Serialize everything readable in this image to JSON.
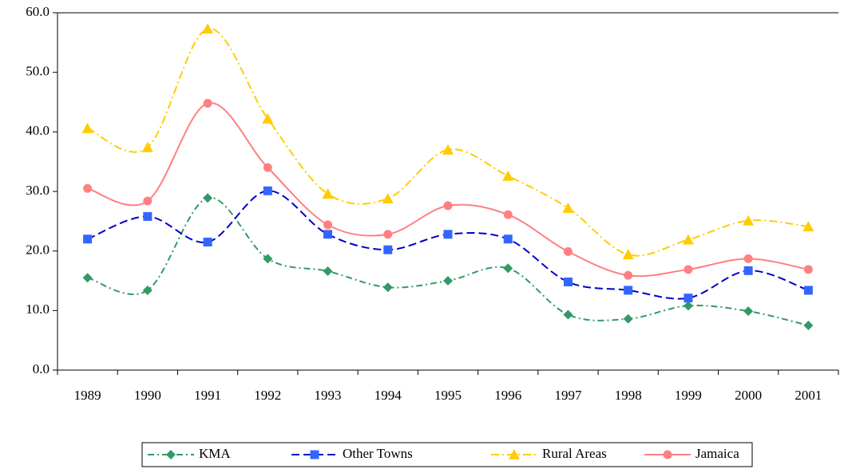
{
  "chart_data": {
    "type": "line",
    "categories": [
      "1989",
      "1990",
      "1991",
      "1992",
      "1993",
      "1994",
      "1995",
      "1996",
      "1997",
      "1998",
      "1999",
      "2000",
      "2001"
    ],
    "series": [
      {
        "name": "KMA",
        "color": "#339966",
        "marker": "diamond",
        "dash": "8 4 2 4",
        "values": [
          15.5,
          13.4,
          28.9,
          18.7,
          16.6,
          13.9,
          15.0,
          17.1,
          9.3,
          8.6,
          10.8,
          9.9,
          7.5
        ]
      },
      {
        "name": "Other Towns",
        "color": "#0000cc",
        "marker_color": "#3366ff",
        "marker": "square",
        "dash": "10 5",
        "values": [
          22.0,
          25.8,
          21.5,
          30.1,
          22.8,
          20.2,
          22.8,
          22.0,
          14.8,
          13.4,
          12.1,
          16.7,
          13.4
        ]
      },
      {
        "name": "Rural Areas",
        "color": "#ffcc00",
        "marker": "triangle",
        "dash": "10 4 2 4",
        "values": [
          40.6,
          37.4,
          57.3,
          42.2,
          29.6,
          28.8,
          37.0,
          32.6,
          27.2,
          19.4,
          21.9,
          25.1,
          24.1
        ]
      },
      {
        "name": "Jamaica",
        "color": "#ff8080",
        "marker": "circle",
        "dash": "none",
        "values": [
          30.5,
          28.4,
          44.8,
          34.0,
          24.4,
          22.8,
          27.6,
          26.1,
          19.9,
          15.9,
          16.9,
          18.7,
          16.9
        ]
      }
    ],
    "ylim": [
      0,
      60
    ],
    "yticks": [
      {
        "value": 0,
        "label": "0.0"
      },
      {
        "value": 10,
        "label": "10.0"
      },
      {
        "value": 20,
        "label": "20.0"
      },
      {
        "value": 30,
        "label": "30.0"
      },
      {
        "value": 40,
        "label": "40.0"
      },
      {
        "value": 50,
        "label": "50.0"
      },
      {
        "value": 60,
        "label": "60.0"
      }
    ],
    "grid": false,
    "legend": "bottom"
  }
}
